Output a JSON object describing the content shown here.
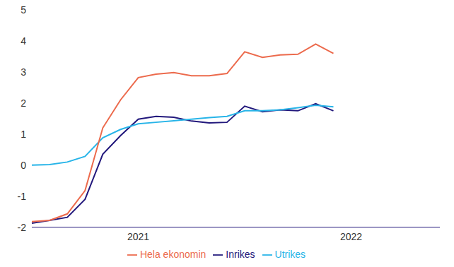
{
  "chart_data": {
    "type": "line",
    "categories": [
      null,
      null,
      null,
      null,
      null,
      null,
      "2021",
      null,
      null,
      null,
      null,
      null,
      null,
      null,
      null,
      null,
      null,
      null,
      "2022",
      null,
      null,
      null,
      null,
      null
    ],
    "series": [
      {
        "name": "Inrikes",
        "color": "#22187c",
        "values": [
          -1.87,
          -1.78,
          -1.68,
          -1.1,
          0.35,
          0.95,
          1.48,
          1.57,
          1.54,
          1.42,
          1.36,
          1.38,
          1.9,
          1.72,
          1.78,
          1.75,
          1.98,
          1.75,
          null,
          null,
          null,
          null,
          null,
          null
        ]
      },
      {
        "name": "Utrikes",
        "color": "#27b4e8",
        "values": [
          0,
          0.02,
          0.1,
          0.28,
          0.88,
          1.15,
          1.33,
          1.38,
          1.43,
          1.48,
          1.53,
          1.57,
          1.75,
          1.75,
          1.78,
          1.85,
          1.93,
          1.88,
          null,
          null,
          null,
          null,
          null,
          null
        ]
      },
      {
        "name": "Hela ekonomin",
        "color": "#ec6a4c",
        "values": [
          -1.82,
          -1.78,
          -1.57,
          -0.82,
          1.2,
          2.1,
          2.82,
          2.93,
          2.98,
          2.88,
          2.88,
          2.95,
          3.65,
          3.47,
          3.55,
          3.57,
          3.9,
          3.6,
          null,
          null,
          null,
          null,
          null,
          null
        ]
      }
    ],
    "ylim": [
      -2,
      5
    ],
    "yticks": [
      -2,
      -1,
      0,
      1,
      2,
      3,
      4,
      5
    ],
    "legend": "bottom"
  }
}
